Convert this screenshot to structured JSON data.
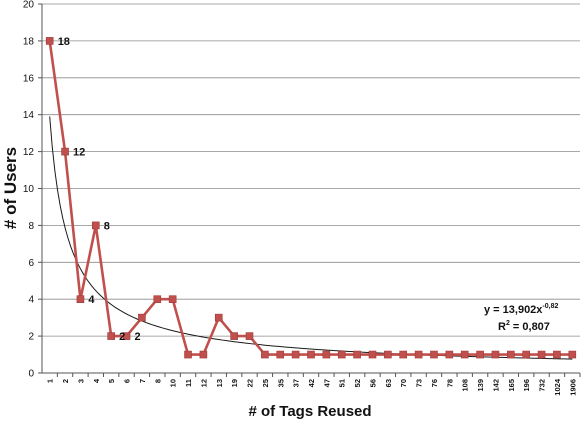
{
  "chart_data": {
    "type": "line",
    "xlabel": "# of Tags Reused",
    "ylabel": "# of Users",
    "ylim": [
      0,
      20
    ],
    "yticks": [
      0,
      2,
      4,
      6,
      8,
      10,
      12,
      14,
      16,
      18,
      20
    ],
    "grid": true,
    "categories": [
      "1",
      "2",
      "3",
      "4",
      "5",
      "6",
      "7",
      "8",
      "10",
      "11",
      "12",
      "13",
      "19",
      "22",
      "25",
      "35",
      "37",
      "42",
      "47",
      "51",
      "52",
      "56",
      "63",
      "70",
      "73",
      "76",
      "78",
      "108",
      "139",
      "142",
      "165",
      "196",
      "732",
      "1024",
      "1906"
    ],
    "series": [
      {
        "name": "",
        "color": "#c0504d",
        "values": [
          18,
          12,
          4,
          8,
          2,
          2,
          3,
          4,
          4,
          1,
          1,
          3,
          2,
          2,
          1,
          1,
          1,
          1,
          1,
          1,
          1,
          1,
          1,
          1,
          1,
          1,
          1,
          1,
          1,
          1,
          1,
          1,
          1,
          1,
          1
        ]
      }
    ],
    "data_labels": [
      {
        "index": 0,
        "text": "18"
      },
      {
        "index": 1,
        "text": "12"
      },
      {
        "index": 2,
        "text": "4"
      },
      {
        "index": 3,
        "text": "8"
      },
      {
        "index": 4,
        "text": "2"
      },
      {
        "index": 5,
        "text": "2"
      }
    ],
    "trendline": {
      "type": "power",
      "a": 13.902,
      "b": -0.82,
      "color": "#1a1a1a",
      "equation_prefix": "y = 13,902x",
      "equation_exponent": "-0,82",
      "r2_prefix": "R",
      "r2_suffix": " = 0,807"
    }
  }
}
